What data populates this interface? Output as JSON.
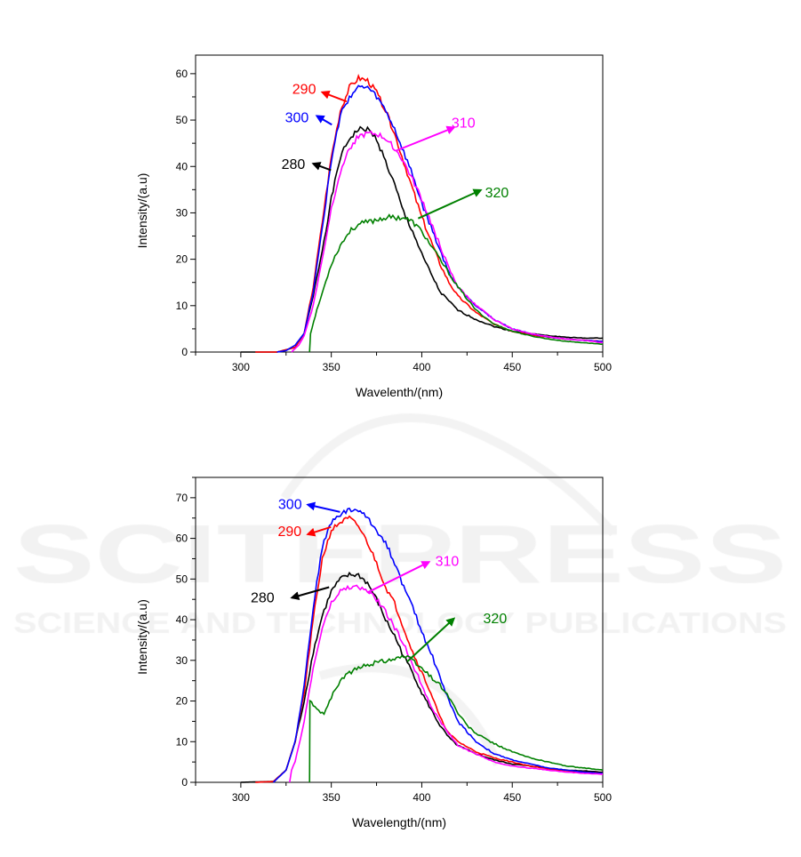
{
  "watermark": {
    "line1": "SCITEPRESS",
    "line2": "SCIENCE AND TECHNOLOGY PUBLICATIONS"
  },
  "chart_data": [
    {
      "type": "line",
      "title": "",
      "xlabel": "Wavelenth/(nm)",
      "ylabel": "Intensity/(a.u)",
      "xlim": [
        275,
        500
      ],
      "ylim": [
        0,
        64
      ],
      "xticks": [
        300,
        350,
        400,
        450,
        500
      ],
      "yticks": [
        0,
        10,
        20,
        30,
        40,
        50,
        60
      ],
      "grid": false,
      "series": [
        {
          "name": "280",
          "color": "#000000",
          "x": [
            300,
            320,
            330,
            335,
            340,
            345,
            350,
            355,
            360,
            365,
            370,
            375,
            380,
            385,
            390,
            395,
            400,
            405,
            410,
            415,
            420,
            430,
            440,
            450,
            460,
            470,
            480,
            490,
            500
          ],
          "y": [
            0,
            0,
            1,
            4,
            12,
            22,
            33,
            42,
            46,
            48,
            48,
            46,
            41,
            36,
            30,
            26,
            21,
            17,
            13,
            11,
            9,
            7,
            5.5,
            4.5,
            4,
            3.5,
            3.2,
            3,
            3
          ]
        },
        {
          "name": "290",
          "color": "#ff0000",
          "x": [
            308,
            320,
            330,
            335,
            340,
            345,
            350,
            355,
            360,
            365,
            370,
            375,
            380,
            385,
            390,
            395,
            400,
            405,
            410,
            415,
            420,
            430,
            440,
            450,
            460,
            470,
            480,
            490,
            500
          ],
          "y": [
            0,
            0,
            1,
            4,
            14,
            28,
            42,
            52,
            57,
            59,
            58.5,
            56,
            52,
            47,
            41,
            35,
            29,
            24,
            19,
            15,
            12,
            8.5,
            6,
            4.5,
            3.7,
            3.2,
            2.8,
            2.5,
            2.3
          ]
        },
        {
          "name": "300",
          "color": "#0000ff",
          "x": [
            320,
            325,
            330,
            335,
            340,
            345,
            350,
            355,
            360,
            365,
            370,
            375,
            380,
            385,
            390,
            395,
            400,
            405,
            410,
            415,
            420,
            430,
            440,
            450,
            460,
            470,
            480,
            490,
            500
          ],
          "y": [
            0,
            0.3,
            1.5,
            4,
            13,
            27,
            41,
            51,
            55,
            57,
            57,
            55,
            52,
            48,
            43,
            38,
            32,
            27,
            22,
            17,
            14,
            10,
            7,
            5,
            4,
            3.2,
            2.8,
            2.5,
            2.3
          ]
        },
        {
          "name": "310",
          "color": "#ff00ff",
          "x": [
            328,
            332,
            335,
            340,
            345,
            350,
            355,
            360,
            365,
            370,
            375,
            380,
            385,
            390,
            395,
            400,
            405,
            410,
            415,
            420,
            430,
            440,
            450,
            460,
            470,
            480,
            490,
            500
          ],
          "y": [
            0,
            1.5,
            3.5,
            10,
            20,
            31,
            39,
            44,
            46.5,
            47,
            47,
            46,
            44,
            41,
            37,
            33,
            28,
            23,
            18,
            14,
            10,
            7,
            5,
            4,
            3.3,
            2.8,
            2.5,
            2
          ]
        },
        {
          "name": "320",
          "color": "#008000",
          "x": [
            338,
            338.5,
            342,
            346,
            350,
            355,
            360,
            365,
            370,
            375,
            380,
            385,
            390,
            395,
            400,
            405,
            410,
            415,
            420,
            425,
            430,
            440,
            450,
            460,
            470,
            480,
            490,
            500
          ],
          "y": [
            0,
            4,
            9,
            14,
            19,
            23,
            26,
            27.5,
            28,
            28.5,
            29,
            29,
            29,
            28,
            26,
            23,
            20,
            17,
            14,
            11.5,
            9,
            6,
            4.5,
            3.5,
            2.8,
            2.3,
            2,
            1.7
          ]
        }
      ],
      "annotations": [
        "290",
        "300",
        "310",
        "280",
        "320"
      ]
    },
    {
      "type": "line",
      "title": "",
      "xlabel": "Wavelength/(nm)",
      "ylabel": "Intensity/(a.u)",
      "xlim": [
        275,
        500
      ],
      "ylim": [
        0,
        75
      ],
      "xticks": [
        300,
        350,
        400,
        450,
        500
      ],
      "yticks": [
        0,
        10,
        20,
        30,
        40,
        50,
        60,
        70
      ],
      "grid": false,
      "series": [
        {
          "name": "280",
          "color": "#000000",
          "x": [
            300,
            318,
            325,
            330,
            335,
            340,
            345,
            350,
            355,
            360,
            365,
            370,
            375,
            380,
            385,
            390,
            395,
            400,
            405,
            410,
            415,
            420,
            430,
            440,
            450,
            460,
            470,
            480,
            490,
            500
          ],
          "y": [
            0,
            0.2,
            3,
            10,
            20,
            32,
            41,
            47,
            50,
            51,
            51,
            49,
            45,
            40,
            36,
            31,
            27,
            22,
            18,
            14,
            11,
            9,
            7,
            5.5,
            4.5,
            4,
            3.5,
            3,
            2.8,
            2.5
          ]
        },
        {
          "name": "290",
          "color": "#ff0000",
          "x": [
            308,
            318,
            325,
            330,
            335,
            340,
            345,
            350,
            355,
            360,
            365,
            370,
            375,
            380,
            385,
            390,
            395,
            400,
            405,
            410,
            415,
            420,
            430,
            440,
            450,
            460,
            470,
            480,
            490,
            500
          ],
          "y": [
            0,
            0.2,
            3,
            10,
            22,
            40,
            55,
            62,
            64,
            65,
            63,
            59,
            54,
            48,
            44,
            38,
            32,
            27,
            22,
            16,
            12,
            10,
            7.5,
            6,
            5,
            4,
            3.3,
            2.8,
            2.5,
            2.2
          ]
        },
        {
          "name": "300",
          "color": "#0000ff",
          "x": [
            318,
            325,
            330,
            335,
            340,
            345,
            350,
            355,
            360,
            365,
            370,
            375,
            380,
            385,
            390,
            395,
            400,
            405,
            410,
            415,
            420,
            430,
            440,
            450,
            460,
            470,
            480,
            490,
            500
          ],
          "y": [
            0,
            3,
            10,
            24,
            43,
            58,
            64,
            66,
            67,
            67,
            65,
            62,
            59,
            54,
            48,
            43,
            37,
            32,
            26,
            20,
            15,
            10,
            7,
            5.5,
            4.5,
            3.5,
            3,
            2.5,
            2.2
          ]
        },
        {
          "name": "310",
          "color": "#ff00ff",
          "x": [
            327,
            328,
            330,
            335,
            340,
            345,
            350,
            355,
            360,
            365,
            370,
            375,
            380,
            385,
            390,
            395,
            400,
            405,
            410,
            415,
            420,
            430,
            440,
            450,
            460,
            470,
            480,
            490,
            500
          ],
          "y": [
            0,
            3,
            5,
            15,
            28,
            38,
            44,
            47,
            48,
            48,
            47,
            45,
            42,
            38,
            34,
            29,
            24,
            19,
            15,
            12,
            9,
            7,
            5,
            4,
            3.5,
            3,
            2.5,
            2.2,
            2
          ]
        },
        {
          "name": "320",
          "color": "#008000",
          "x": [
            338,
            338.2,
            340,
            343,
            346,
            350,
            355,
            360,
            365,
            370,
            375,
            380,
            385,
            390,
            395,
            400,
            405,
            410,
            415,
            420,
            425,
            430,
            440,
            450,
            460,
            470,
            480,
            490,
            500
          ],
          "y": [
            0,
            20,
            19,
            17.5,
            17,
            21,
            25,
            27,
            28,
            29,
            29.5,
            30,
            30.5,
            31,
            30,
            28,
            26,
            24,
            21,
            17,
            14,
            12,
            9.5,
            7.5,
            6,
            5,
            4,
            3.5,
            3
          ]
        }
      ],
      "annotations": [
        "300",
        "290",
        "310",
        "280",
        "320"
      ]
    }
  ]
}
